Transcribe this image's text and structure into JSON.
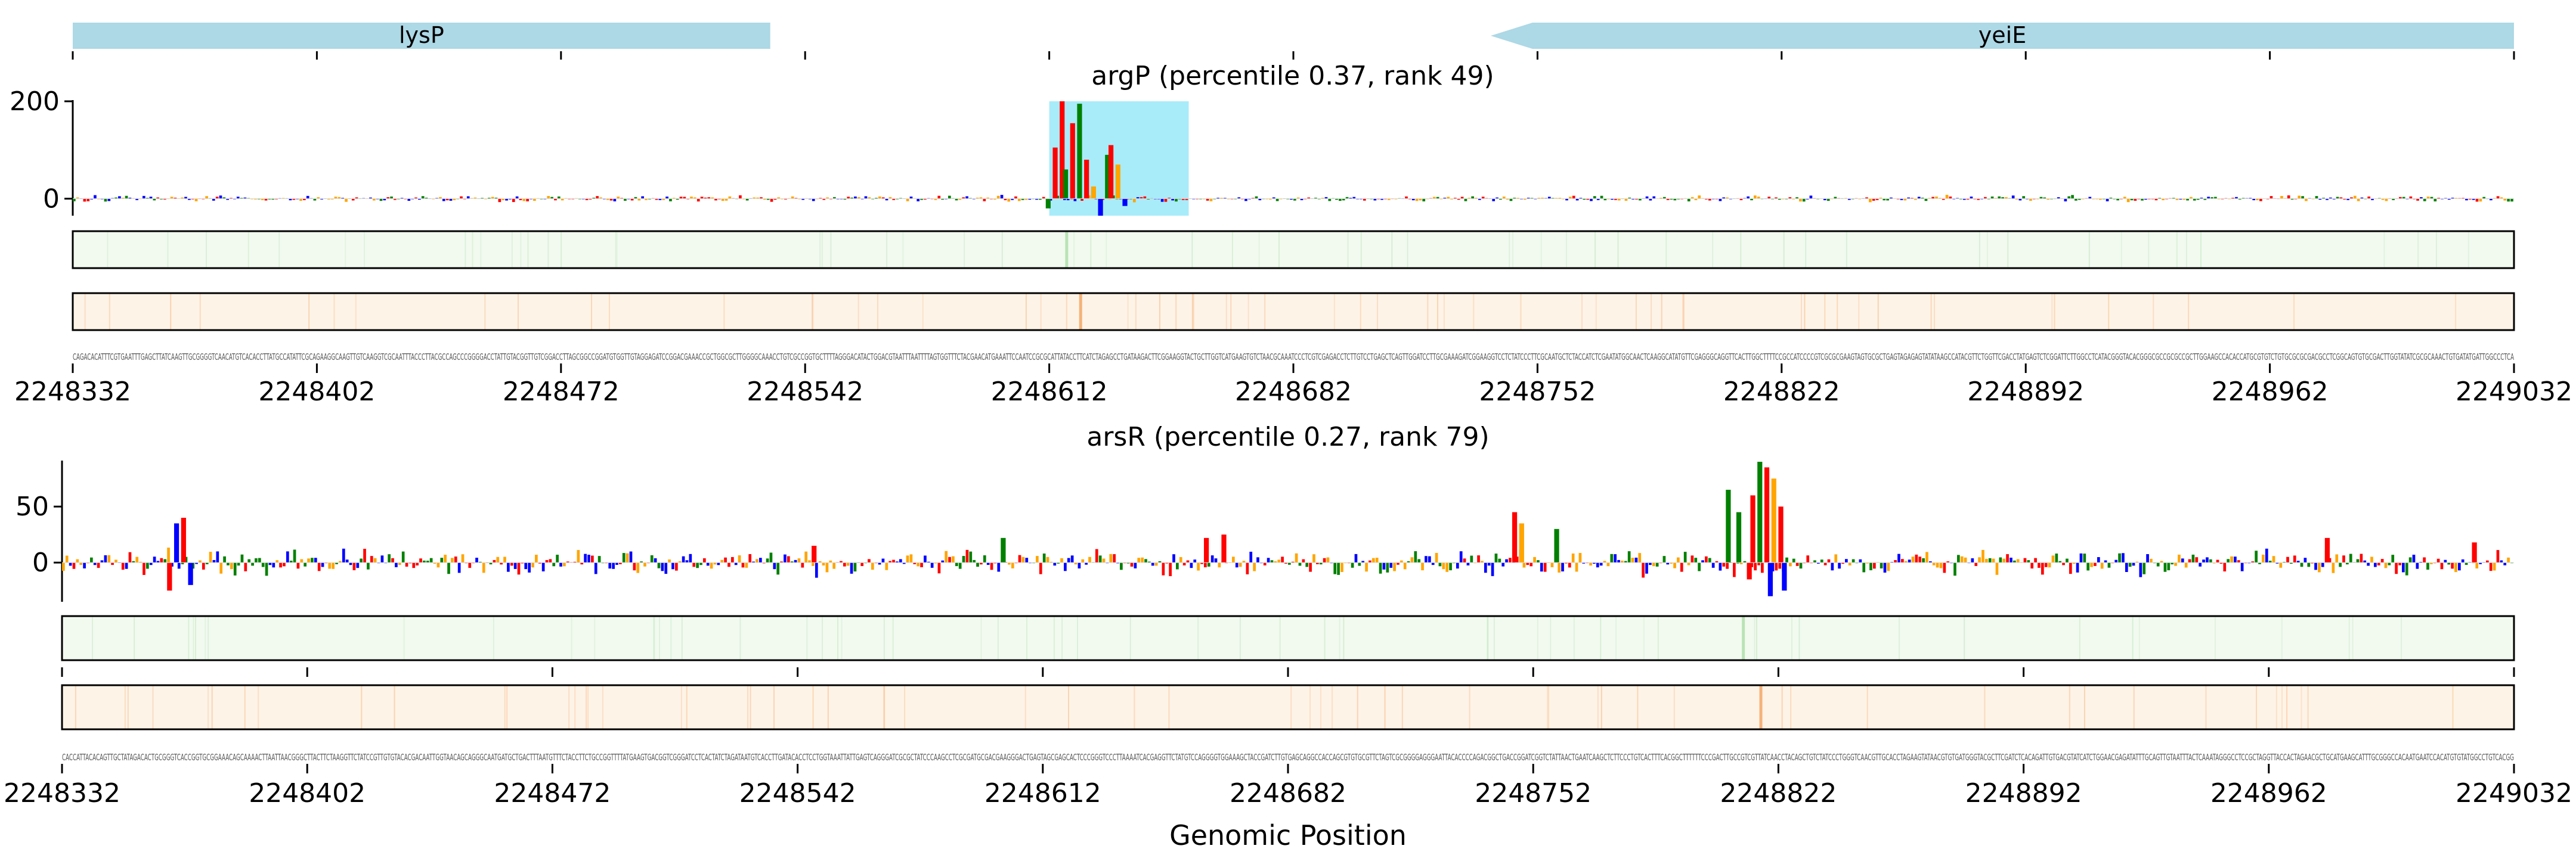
{
  "page": {
    "title": ""
  },
  "colors": {
    "gene_arrow": "#add8e6",
    "highlight": "#a8ecfa",
    "A": "#008000",
    "C": "#0000ff",
    "G": "#ffa500",
    "T": "#ff0000",
    "track_green_bg": "#f2faf0",
    "track_green_line": "#b9e3b5",
    "track_orange_bg": "#fef3e7",
    "track_orange_line": "#f5b27a"
  },
  "genes": [
    {
      "name": "lysP",
      "start": 2248332,
      "end": 2248532,
      "strand": "+"
    },
    {
      "name": "yeiE",
      "start": 2248712,
      "end": 2249032,
      "strand": "-"
    }
  ],
  "chart_data": [
    {
      "type": "sequence-logo",
      "title": "argP (percentile 0.37, rank 49)",
      "xlabel": "",
      "ylabel": "",
      "xlim": [
        2248332,
        2249032
      ],
      "ylim": [
        -35,
        200
      ],
      "yticks": [
        0,
        200
      ],
      "xticks": [
        2248332,
        2248402,
        2248472,
        2248542,
        2248612,
        2248682,
        2248752,
        2248822,
        2248892,
        2248962,
        2249032
      ],
      "highlight": {
        "start": 2248612,
        "end": 2248652
      },
      "peaks": [
        {
          "x": 2248613,
          "value": 105,
          "base": "T"
        },
        {
          "x": 2248615,
          "value": 200,
          "base": "T"
        },
        {
          "x": 2248616,
          "value": 60,
          "base": "A"
        },
        {
          "x": 2248618,
          "value": 155,
          "base": "T"
        },
        {
          "x": 2248620,
          "value": 195,
          "base": "A"
        },
        {
          "x": 2248622,
          "value": 80,
          "base": "T"
        },
        {
          "x": 2248624,
          "value": 25,
          "base": "G"
        },
        {
          "x": 2248626,
          "value": -35,
          "base": "C"
        },
        {
          "x": 2248628,
          "value": 90,
          "base": "A"
        },
        {
          "x": 2248629,
          "value": 110,
          "base": "T"
        },
        {
          "x": 2248631,
          "value": 70,
          "base": "G"
        },
        {
          "x": 2248633,
          "value": -15,
          "base": "C"
        },
        {
          "x": 2248611,
          "value": -20,
          "base": "A"
        }
      ],
      "tracks": [
        {
          "name": "green-track",
          "peak_x": 2248617
        },
        {
          "name": "orange-track",
          "peak_x": 2248621
        }
      ]
    },
    {
      "type": "sequence-logo",
      "title": "arsR (percentile 0.27, rank 79)",
      "xlabel": "Genomic Position",
      "ylabel": "",
      "xlim": [
        2248332,
        2249032
      ],
      "ylim": [
        -35,
        90
      ],
      "yticks": [
        0,
        50
      ],
      "xticks": [
        2248332,
        2248402,
        2248472,
        2248542,
        2248612,
        2248682,
        2248752,
        2248822,
        2248892,
        2248962,
        2249032
      ],
      "peaks": [
        {
          "x": 2248364,
          "value": 35,
          "base": "C"
        },
        {
          "x": 2248366,
          "value": 40,
          "base": "T"
        },
        {
          "x": 2248362,
          "value": -25,
          "base": "T"
        },
        {
          "x": 2248368,
          "value": -20,
          "base": "C"
        },
        {
          "x": 2248546,
          "value": 15,
          "base": "T"
        },
        {
          "x": 2248600,
          "value": 22,
          "base": "A"
        },
        {
          "x": 2248658,
          "value": 22,
          "base": "T"
        },
        {
          "x": 2248663,
          "value": 25,
          "base": "T"
        },
        {
          "x": 2248746,
          "value": 45,
          "base": "T"
        },
        {
          "x": 2248748,
          "value": 35,
          "base": "G"
        },
        {
          "x": 2248758,
          "value": 30,
          "base": "A"
        },
        {
          "x": 2248807,
          "value": 65,
          "base": "A"
        },
        {
          "x": 2248810,
          "value": 45,
          "base": "A"
        },
        {
          "x": 2248814,
          "value": 60,
          "base": "T"
        },
        {
          "x": 2248816,
          "value": 90,
          "base": "A"
        },
        {
          "x": 2248818,
          "value": 85,
          "base": "T"
        },
        {
          "x": 2248820,
          "value": 75,
          "base": "G"
        },
        {
          "x": 2248822,
          "value": 50,
          "base": "T"
        },
        {
          "x": 2248819,
          "value": -30,
          "base": "C"
        },
        {
          "x": 2248823,
          "value": -25,
          "base": "C"
        },
        {
          "x": 2248813,
          "value": -15,
          "base": "T"
        },
        {
          "x": 2248978,
          "value": 22,
          "base": "T"
        },
        {
          "x": 2249020,
          "value": 18,
          "base": "T"
        }
      ],
      "tracks": [
        {
          "name": "green-track",
          "peak_x": 2248812
        },
        {
          "name": "orange-track",
          "peak_x": 2248817
        }
      ]
    }
  ]
}
